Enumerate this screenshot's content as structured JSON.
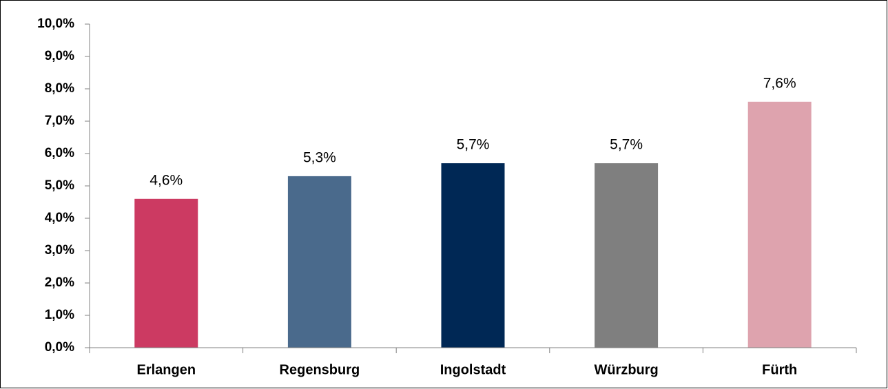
{
  "chart_data": {
    "type": "bar",
    "categories": [
      "Erlangen",
      "Regensburg",
      "Ingolstadt",
      "Würzburg",
      "Fürth"
    ],
    "values": [
      4.6,
      5.3,
      5.7,
      5.7,
      7.6
    ],
    "value_labels": [
      "4,6%",
      "5,3%",
      "5,7%",
      "5,7%",
      "7,6%"
    ],
    "colors": [
      "#cc3a62",
      "#4a6a8c",
      "#002855",
      "#7f7f7f",
      "#dea3ae"
    ],
    "ylim": [
      0,
      10
    ],
    "yticks": [
      {
        "value": 0,
        "label": "0,0%"
      },
      {
        "value": 1,
        "label": "1,0%"
      },
      {
        "value": 2,
        "label": "2,0%"
      },
      {
        "value": 3,
        "label": "3,0%"
      },
      {
        "value": 4,
        "label": "4,0%"
      },
      {
        "value": 5,
        "label": "5,0%"
      },
      {
        "value": 6,
        "label": "6,0%"
      },
      {
        "value": 7,
        "label": "7,0%"
      },
      {
        "value": 8,
        "label": "8,0%"
      },
      {
        "value": 9,
        "label": "9,0%"
      },
      {
        "value": 10,
        "label": "10,0%"
      }
    ],
    "grid": false
  }
}
